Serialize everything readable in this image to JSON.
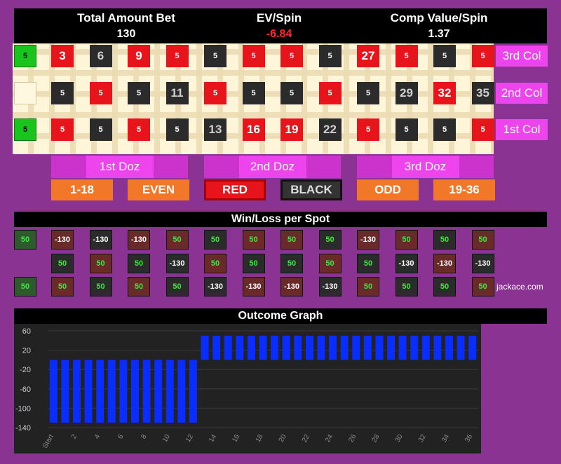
{
  "header": {
    "total_bet_label": "Total Amount Bet",
    "total_bet_value": "130",
    "ev_label": "EV/Spin",
    "ev_value": "-6.84",
    "comp_label": "Comp Value/Spin",
    "comp_value": "1.37"
  },
  "zeros": [
    "5",
    "",
    "5"
  ],
  "rows": [
    [
      {
        "n": "3",
        "c": "red",
        "b": true
      },
      {
        "n": "6",
        "c": "black",
        "b": true
      },
      {
        "n": "9",
        "c": "red",
        "b": true
      },
      {
        "n": "5",
        "c": "red"
      },
      {
        "n": "5",
        "c": "black"
      },
      {
        "n": "5",
        "c": "red"
      },
      {
        "n": "5",
        "c": "red"
      },
      {
        "n": "5",
        "c": "black"
      },
      {
        "n": "27",
        "c": "red",
        "b": true
      },
      {
        "n": "5",
        "c": "red"
      },
      {
        "n": "5",
        "c": "black"
      },
      {
        "n": "5",
        "c": "red"
      }
    ],
    [
      {
        "n": "5",
        "c": "black"
      },
      {
        "n": "5",
        "c": "red"
      },
      {
        "n": "5",
        "c": "black"
      },
      {
        "n": "11",
        "c": "black",
        "b": true
      },
      {
        "n": "5",
        "c": "red"
      },
      {
        "n": "5",
        "c": "black"
      },
      {
        "n": "5",
        "c": "black"
      },
      {
        "n": "5",
        "c": "red"
      },
      {
        "n": "5",
        "c": "black"
      },
      {
        "n": "29",
        "c": "black",
        "b": true
      },
      {
        "n": "32",
        "c": "red",
        "b": true
      },
      {
        "n": "35",
        "c": "black",
        "b": true
      }
    ],
    [
      {
        "n": "5",
        "c": "red"
      },
      {
        "n": "5",
        "c": "black"
      },
      {
        "n": "5",
        "c": "red"
      },
      {
        "n": "5",
        "c": "black"
      },
      {
        "n": "13",
        "c": "black",
        "b": true
      },
      {
        "n": "16",
        "c": "red",
        "b": true
      },
      {
        "n": "19",
        "c": "red",
        "b": true
      },
      {
        "n": "22",
        "c": "black",
        "b": true
      },
      {
        "n": "5",
        "c": "red"
      },
      {
        "n": "5",
        "c": "black"
      },
      {
        "n": "5",
        "c": "black"
      },
      {
        "n": "5",
        "c": "red"
      }
    ]
  ],
  "columns": [
    "3rd Col",
    "2nd Col",
    "1st Col"
  ],
  "dozens": [
    "1st Doz",
    "2nd Doz",
    "3rd Doz"
  ],
  "outside_bets": [
    "1-18",
    "EVEN",
    "RED",
    "BLACK",
    "ODD",
    "19-36"
  ],
  "winloss": {
    "title": "Win/Loss per Spot",
    "zeros": [
      "50",
      "",
      "50"
    ],
    "rows": [
      [
        "-130",
        "-130",
        "-130",
        "50",
        "50",
        "50",
        "50",
        "50",
        "-130",
        "50",
        "50",
        "50"
      ],
      [
        "50",
        "50",
        "50",
        "-130",
        "50",
        "50",
        "50",
        "50",
        "50",
        "-130",
        "-130",
        "-130"
      ],
      [
        "50",
        "50",
        "50",
        "50",
        "-130",
        "-130",
        "-130",
        "-130",
        "50",
        "50",
        "50",
        "50"
      ]
    ]
  },
  "credit": "jackace.com",
  "graph": {
    "title": "Outcome Graph",
    "y_ticks": [
      "60",
      "20",
      "-20",
      "-60",
      "-100",
      "-140"
    ],
    "x_ticks": [
      "Start",
      "2",
      "4",
      "6",
      "8",
      "10",
      "12",
      "14",
      "16",
      "18",
      "20",
      "22",
      "24",
      "26",
      "28",
      "30",
      "32",
      "34",
      "36"
    ]
  },
  "chart_data": {
    "type": "bar",
    "title": "Outcome Graph",
    "ylim": [
      -140,
      60
    ],
    "values": [
      -130,
      -130,
      -130,
      -130,
      -130,
      -130,
      -130,
      -130,
      -130,
      -130,
      -130,
      -130,
      -130,
      50,
      50,
      50,
      50,
      50,
      50,
      50,
      50,
      50,
      50,
      50,
      50,
      50,
      50,
      50,
      50,
      50,
      50,
      50,
      50,
      50,
      50,
      50,
      50
    ],
    "color": "#0a2dff"
  }
}
